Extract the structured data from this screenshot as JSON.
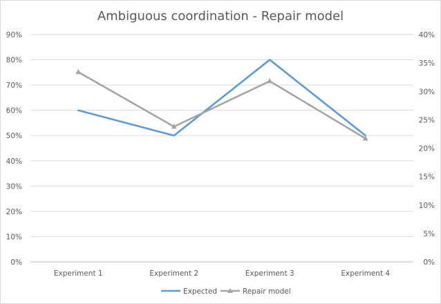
{
  "chart_data": {
    "type": "line",
    "title": "Ambiguous coordination - Repair model",
    "categories": [
      "Experiment 1",
      "Experiment 2",
      "Experiment 3",
      "Experiment 4"
    ],
    "series": [
      {
        "name": "Expected",
        "axis": "left",
        "values": [
          0.6,
          0.5,
          0.8,
          0.5
        ],
        "color": "#5b9bd5",
        "marker": "none"
      },
      {
        "name": "Repair model",
        "axis": "right",
        "values": [
          0.334,
          0.238,
          0.318,
          0.217
        ],
        "color": "#a5a5a5",
        "marker": "triangle"
      }
    ],
    "y_left": {
      "min": 0,
      "max": 0.9,
      "step": 0.1,
      "tick_labels": [
        "0%",
        "10%",
        "20%",
        "30%",
        "40%",
        "50%",
        "60%",
        "70%",
        "80%",
        "90%"
      ]
    },
    "y_right": {
      "min": 0,
      "max": 0.4,
      "step": 0.05,
      "tick_labels": [
        "0%",
        "5%",
        "10%",
        "15%",
        "20%",
        "25%",
        "30%",
        "35%",
        "40%"
      ]
    },
    "grid": true,
    "legend_position": "bottom"
  }
}
